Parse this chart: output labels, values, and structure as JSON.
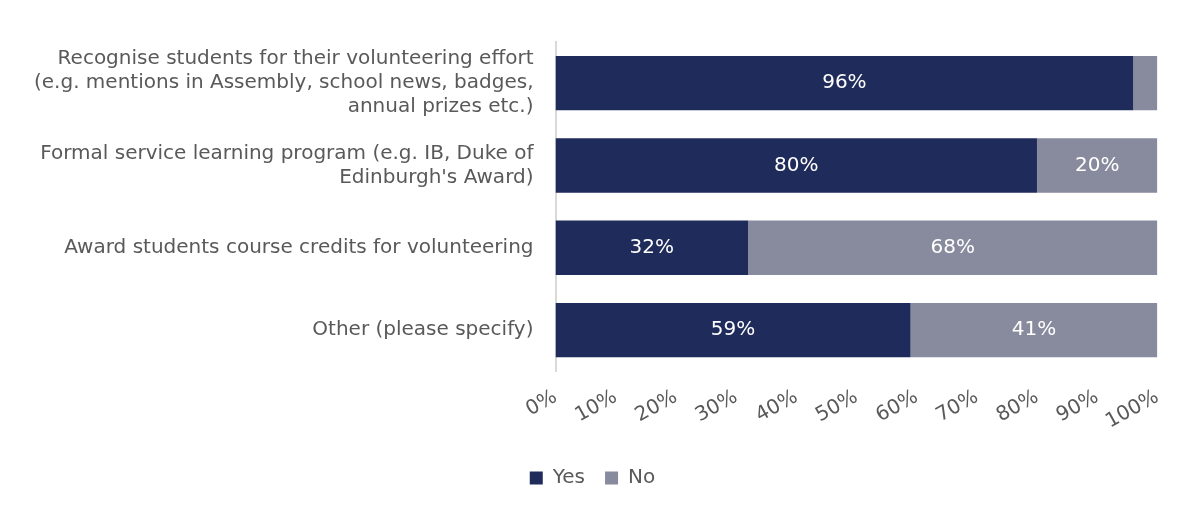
{
  "chart_data": {
    "type": "bar",
    "orientation": "horizontal",
    "stacked": true,
    "categories": [
      "Recognise students for their volunteering effort (e.g. mentions in Assembly, school news, badges, annual prizes etc.)",
      "Formal service learning program (e.g. IB, Duke of Edinburgh's Award)",
      "Award students course credits for volunteering",
      "Other (please specify)"
    ],
    "series": [
      {
        "name": "Yes",
        "color": "#1f2b5b",
        "values": [
          96,
          80,
          32,
          59
        ],
        "value_labels": [
          "96%",
          "80%",
          "32%",
          "59%"
        ]
      },
      {
        "name": "No",
        "color": "#888a9e",
        "values": [
          4,
          20,
          68,
          41
        ],
        "value_labels": [
          null,
          "20%",
          "68%",
          "41%"
        ]
      }
    ],
    "xlim": [
      0,
      100
    ],
    "xticks": [
      {
        "value": 0,
        "label": "0%"
      },
      {
        "value": 10,
        "label": "10%"
      },
      {
        "value": 20,
        "label": "20%"
      },
      {
        "value": 30,
        "label": "30%"
      },
      {
        "value": 40,
        "label": "40%"
      },
      {
        "value": 50,
        "label": "50%"
      },
      {
        "value": 60,
        "label": "60%"
      },
      {
        "value": 70,
        "label": "70%"
      },
      {
        "value": 80,
        "label": "80%"
      },
      {
        "value": 90,
        "label": "90%"
      },
      {
        "value": 100,
        "label": "100%"
      }
    ],
    "grid": false,
    "legend": "bottom"
  }
}
